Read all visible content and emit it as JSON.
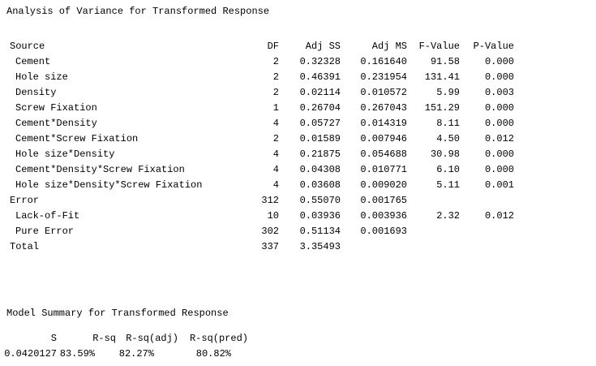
{
  "anova": {
    "title": "Analysis of Variance for Transformed Response",
    "columns": [
      "Source",
      "DF",
      "Adj SS",
      "Adj MS",
      "F-Value",
      "P-Value"
    ],
    "terms": [
      [
        "Cement",
        "2",
        "0.32328",
        "0.161640",
        "91.58",
        "0.000"
      ],
      [
        "Hole size",
        "2",
        "0.46391",
        "0.231954",
        "131.41",
        "0.000"
      ],
      [
        "Density",
        "2",
        "0.02114",
        "0.010572",
        "5.99",
        "0.003"
      ],
      [
        "Screw Fixation",
        "1",
        "0.26704",
        "0.267043",
        "151.29",
        "0.000"
      ],
      [
        "Cement*Density",
        "4",
        "0.05727",
        "0.014319",
        "8.11",
        "0.000"
      ],
      [
        "Cement*Screw Fixation",
        "2",
        "0.01589",
        "0.007946",
        "4.50",
        "0.012"
      ],
      [
        "Hole size*Density",
        "4",
        "0.21875",
        "0.054688",
        "30.98",
        "0.000"
      ],
      [
        "Cement*Density*Screw Fixation",
        "4",
        "0.04308",
        "0.010771",
        "6.10",
        "0.000"
      ],
      [
        "Hole size*Density*Screw Fixation",
        "4",
        "0.03608",
        "0.009020",
        "5.11",
        "0.001"
      ]
    ],
    "error": [
      "Error",
      "312",
      "0.55070",
      "0.001765"
    ],
    "error_parts": [
      [
        "Lack-of-Fit",
        "10",
        "0.03936",
        "0.003936",
        "2.32",
        "0.012"
      ],
      [
        "Pure Error",
        "302",
        "0.51134",
        "0.001693"
      ]
    ],
    "total": [
      "Total",
      "337",
      "3.35493"
    ]
  },
  "model_summary": {
    "title": "Model Summary for Transformed Response",
    "columns": [
      "S",
      "R-sq",
      "R-sq(adj)",
      "R-sq(pred)"
    ],
    "values": [
      "0.0420127",
      "83.59%",
      "82.27%",
      "80.82%"
    ]
  }
}
